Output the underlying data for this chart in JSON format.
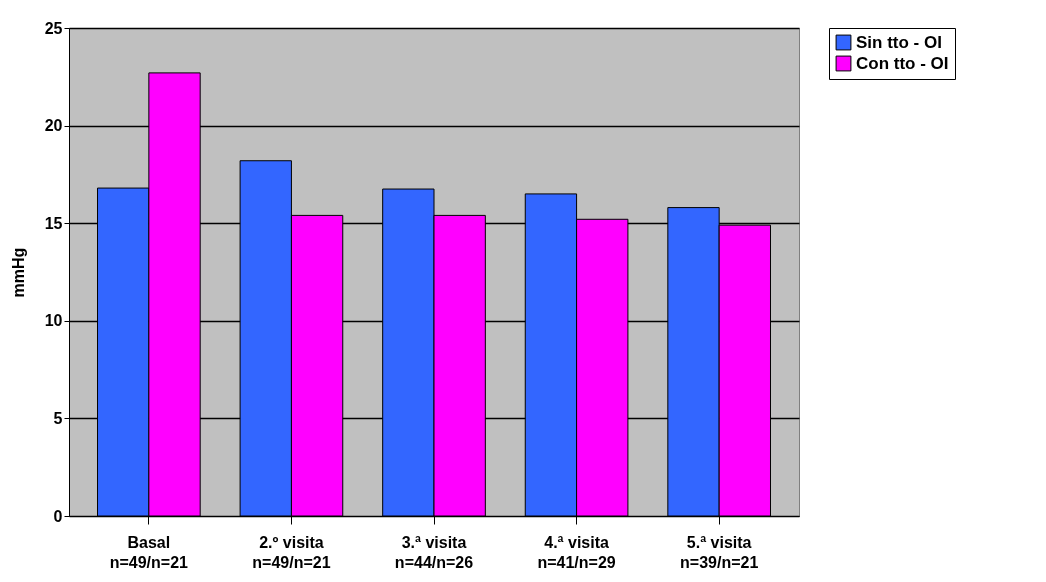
{
  "chart_data": {
    "type": "bar",
    "ylabel": "mmHg",
    "categories": [
      "Basal\nn=49/n=21",
      "2.º visita\nn=49/n=21",
      "3.ª visita\nn=44/n=26",
      "4.ª visita\nn=41/n=29",
      "5.ª visita\nn=39/n=21"
    ],
    "series": [
      {
        "name": "Sin tto - OI",
        "color": "#3366ff",
        "values": [
          16.8,
          18.2,
          16.75,
          16.5,
          15.8
        ]
      },
      {
        "name": "Con tto - OI",
        "color": "#ff00ff",
        "values": [
          22.7,
          15.4,
          15.4,
          15.2,
          14.9
        ]
      }
    ],
    "ylim": [
      0,
      25
    ],
    "yticks": [
      0,
      5,
      10,
      15,
      20,
      25
    ],
    "grid": "y",
    "legend": "right"
  }
}
